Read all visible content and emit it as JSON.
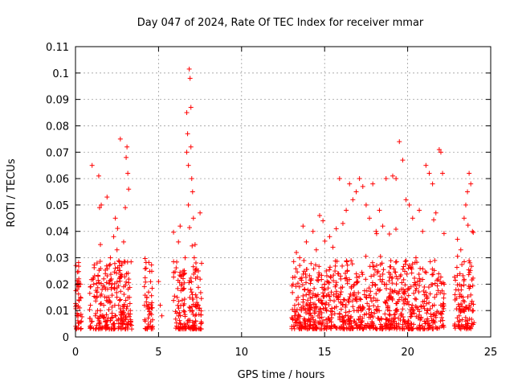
{
  "chart_data": {
    "type": "scatter",
    "title": "Day 047 of 2024, Rate Of TEC Index for receiver mmar",
    "xlabel": "GPS time / hours",
    "ylabel": "ROTI / TECUs",
    "xlim": [
      0,
      25
    ],
    "ylim": [
      0,
      0.11
    ],
    "xticks": [
      0,
      5,
      10,
      15,
      20,
      25
    ],
    "yticks": [
      0,
      0.01,
      0.02,
      0.03,
      0.04,
      0.05,
      0.06,
      0.07,
      0.08,
      0.09,
      0.1,
      0.11
    ],
    "grid": true,
    "marker": "+",
    "color": "#ff0000",
    "series": [
      {
        "name": "mmar",
        "points": [
          [
            0.05,
            0.012
          ],
          [
            0.1,
            0.018
          ],
          [
            0.15,
            0.008
          ],
          [
            0.2,
            0.022
          ],
          [
            0.25,
            0.011
          ],
          [
            0.3,
            0.015
          ],
          [
            0.35,
            0.006
          ],
          [
            0.1,
            0.009
          ],
          [
            0.2,
            0.014
          ],
          [
            0.3,
            0.02
          ],
          [
            0.9,
            0.012
          ],
          [
            1.0,
            0.065
          ],
          [
            1.1,
            0.02
          ],
          [
            1.2,
            0.015
          ],
          [
            1.3,
            0.028
          ],
          [
            1.4,
            0.061
          ],
          [
            1.45,
            0.049
          ],
          [
            1.5,
            0.035
          ],
          [
            1.55,
            0.05
          ],
          [
            1.6,
            0.018
          ],
          [
            1.7,
            0.012
          ],
          [
            1.8,
            0.024
          ],
          [
            1.9,
            0.053
          ],
          [
            2.0,
            0.015
          ],
          [
            2.1,
            0.03
          ],
          [
            2.2,
            0.02
          ],
          [
            2.3,
            0.038
          ],
          [
            2.4,
            0.045
          ],
          [
            2.5,
            0.033
          ],
          [
            2.6,
            0.012
          ],
          [
            2.7,
            0.075
          ],
          [
            2.8,
            0.028
          ],
          [
            2.9,
            0.036
          ],
          [
            3.0,
            0.049
          ],
          [
            3.05,
            0.068
          ],
          [
            3.1,
            0.072
          ],
          [
            3.15,
            0.062
          ],
          [
            3.2,
            0.056
          ],
          [
            3.25,
            0.015
          ],
          [
            3.3,
            0.01
          ],
          [
            1.2,
            0.008
          ],
          [
            1.5,
            0.01
          ],
          [
            1.8,
            0.006
          ],
          [
            2.2,
            0.009
          ],
          [
            2.6,
            0.005
          ],
          [
            3.0,
            0.007
          ],
          [
            1.3,
            0.017
          ],
          [
            1.7,
            0.022
          ],
          [
            2.4,
            0.026
          ],
          [
            2.9,
            0.019
          ],
          [
            4.2,
            0.006
          ],
          [
            4.3,
            0.012
          ],
          [
            4.4,
            0.017
          ],
          [
            4.5,
            0.009
          ],
          [
            4.6,
            0.013
          ],
          [
            4.4,
            0.004
          ],
          [
            4.3,
            0.015
          ],
          [
            5.0,
            0.021
          ],
          [
            5.1,
            0.012
          ],
          [
            5.2,
            0.008
          ],
          [
            6.1,
            0.009
          ],
          [
            6.2,
            0.036
          ],
          [
            6.3,
            0.042
          ],
          [
            6.4,
            0.02
          ],
          [
            6.5,
            0.012
          ],
          [
            6.6,
            0.03
          ],
          [
            6.7,
            0.085
          ],
          [
            6.75,
            0.077
          ],
          [
            6.8,
            0.065
          ],
          [
            6.85,
            0.1015
          ],
          [
            6.9,
            0.098
          ],
          [
            6.95,
            0.087
          ],
          [
            7.0,
            0.06
          ],
          [
            7.05,
            0.055
          ],
          [
            7.1,
            0.045
          ],
          [
            7.15,
            0.03
          ],
          [
            7.2,
            0.035
          ],
          [
            7.3,
            0.015
          ],
          [
            7.4,
            0.025
          ],
          [
            7.5,
            0.047
          ],
          [
            6.9,
            0.01
          ],
          [
            7.0,
            0.017
          ],
          [
            7.2,
            0.008
          ],
          [
            7.4,
            0.012
          ],
          [
            6.7,
            0.07
          ],
          [
            6.8,
            0.05
          ],
          [
            6.95,
            0.072
          ],
          [
            13.1,
            0.02
          ],
          [
            13.3,
            0.032
          ],
          [
            13.5,
            0.03
          ],
          [
            13.7,
            0.042
          ],
          [
            13.9,
            0.036
          ],
          [
            14.1,
            0.012
          ],
          [
            14.3,
            0.04
          ],
          [
            14.5,
            0.033
          ],
          [
            14.7,
            0.046
          ],
          [
            14.9,
            0.044
          ],
          [
            15.1,
            0.025
          ],
          [
            15.3,
            0.038
          ],
          [
            15.5,
            0.034
          ],
          [
            15.7,
            0.041
          ],
          [
            15.9,
            0.06
          ],
          [
            16.1,
            0.043
          ],
          [
            16.3,
            0.048
          ],
          [
            16.5,
            0.058
          ],
          [
            16.7,
            0.052
          ],
          [
            16.9,
            0.055
          ],
          [
            17.1,
            0.06
          ],
          [
            17.3,
            0.057
          ],
          [
            17.5,
            0.05
          ],
          [
            17.7,
            0.045
          ],
          [
            17.9,
            0.058
          ],
          [
            18.1,
            0.04
          ],
          [
            18.3,
            0.048
          ],
          [
            18.5,
            0.042
          ],
          [
            18.7,
            0.06
          ],
          [
            18.9,
            0.039
          ],
          [
            19.1,
            0.061
          ],
          [
            19.3,
            0.06
          ],
          [
            19.5,
            0.074
          ],
          [
            19.7,
            0.067
          ],
          [
            19.9,
            0.052
          ],
          [
            20.1,
            0.05
          ],
          [
            20.3,
            0.045
          ],
          [
            20.5,
            0.03
          ],
          [
            20.7,
            0.048
          ],
          [
            20.9,
            0.04
          ],
          [
            21.1,
            0.065
          ],
          [
            21.3,
            0.062
          ],
          [
            21.5,
            0.058
          ],
          [
            21.7,
            0.047
          ],
          [
            21.9,
            0.071
          ],
          [
            22.0,
            0.07
          ],
          [
            22.1,
            0.062
          ],
          [
            22.2,
            0.02
          ],
          [
            23.0,
            0.037
          ],
          [
            23.2,
            0.033
          ],
          [
            23.4,
            0.045
          ],
          [
            23.5,
            0.05
          ],
          [
            23.6,
            0.055
          ],
          [
            23.7,
            0.062
          ],
          [
            23.8,
            0.058
          ],
          [
            23.9,
            0.04
          ],
          [
            13.2,
            0.008
          ],
          [
            13.6,
            0.01
          ],
          [
            14.0,
            0.006
          ],
          [
            14.4,
            0.009
          ],
          [
            14.8,
            0.005
          ],
          [
            15.2,
            0.007
          ],
          [
            15.6,
            0.011
          ],
          [
            16.0,
            0.004
          ],
          [
            16.4,
            0.008
          ],
          [
            16.8,
            0.006
          ],
          [
            17.2,
            0.01
          ],
          [
            17.6,
            0.005
          ],
          [
            18.0,
            0.009
          ],
          [
            18.4,
            0.007
          ],
          [
            18.8,
            0.011
          ],
          [
            19.2,
            0.006
          ],
          [
            19.6,
            0.008
          ],
          [
            20.0,
            0.005
          ],
          [
            20.4,
            0.009
          ],
          [
            20.8,
            0.007
          ],
          [
            21.2,
            0.01
          ],
          [
            21.6,
            0.006
          ],
          [
            22.0,
            0.009
          ],
          [
            23.1,
            0.008
          ],
          [
            23.5,
            0.006
          ],
          [
            23.9,
            0.01
          ],
          [
            23.3,
            0.004
          ],
          [
            23.7,
            0.012
          ],
          [
            13.4,
            0.015
          ],
          [
            13.8,
            0.018
          ],
          [
            14.2,
            0.022
          ],
          [
            14.6,
            0.016
          ],
          [
            15.0,
            0.02
          ],
          [
            15.4,
            0.017
          ],
          [
            15.8,
            0.024
          ],
          [
            16.2,
            0.014
          ],
          [
            16.6,
            0.019
          ],
          [
            17.0,
            0.021
          ],
          [
            17.4,
            0.016
          ],
          [
            17.8,
            0.023
          ],
          [
            18.2,
            0.018
          ],
          [
            18.6,
            0.02
          ],
          [
            19.0,
            0.015
          ],
          [
            19.4,
            0.022
          ],
          [
            19.8,
            0.017
          ],
          [
            20.2,
            0.019
          ],
          [
            20.6,
            0.021
          ],
          [
            21.0,
            0.016
          ]
        ]
      }
    ]
  }
}
